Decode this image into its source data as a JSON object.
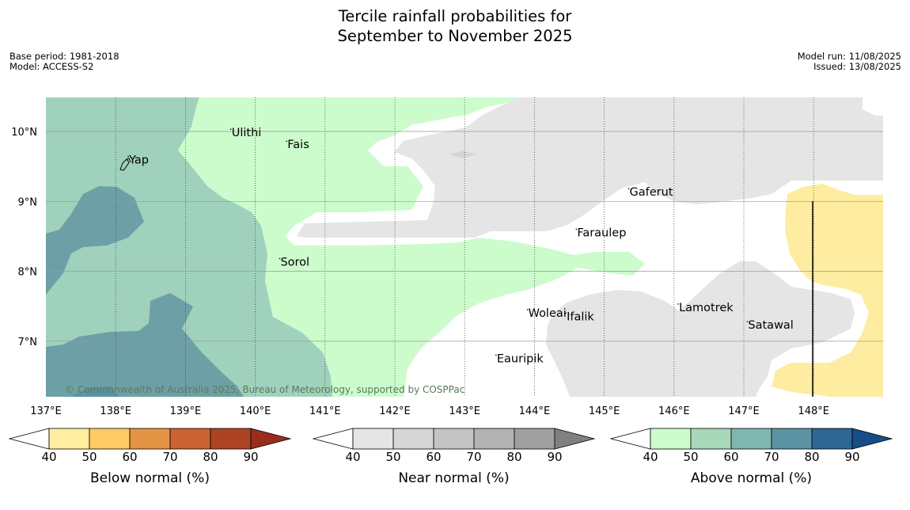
{
  "title": {
    "line1": "Tercile rainfall probabilities for",
    "line2": "September to November 2025"
  },
  "meta_left": {
    "base_period": "Base period: 1981-2018",
    "model": "Model: ACCESS-S2"
  },
  "meta_right": {
    "model_run": "Model run: 11/08/2025",
    "issued": "Issued: 13/08/2025"
  },
  "map": {
    "lon_ticks": [
      "137°E",
      "138°E",
      "139°E",
      "140°E",
      "141°E",
      "142°E",
      "143°E",
      "144°E",
      "145°E",
      "146°E",
      "147°E",
      "148°E"
    ],
    "lat_ticks": [
      "10°N",
      "9°N",
      "8°N",
      "7°N"
    ],
    "islands": [
      {
        "name": "Yap",
        "lon": 138.18,
        "lat": 9.54
      },
      {
        "name": "Ulithi",
        "lon": 139.65,
        "lat": 9.93
      },
      {
        "name": "Fais",
        "lon": 140.45,
        "lat": 9.76
      },
      {
        "name": "Gaferut",
        "lon": 145.35,
        "lat": 9.08
      },
      {
        "name": "Faraulep",
        "lon": 144.6,
        "lat": 8.5
      },
      {
        "name": "Sorol",
        "lon": 140.35,
        "lat": 8.08
      },
      {
        "name": "Woleai",
        "lon": 143.9,
        "lat": 7.35
      },
      {
        "name": "Ifalik",
        "lon": 144.45,
        "lat": 7.3
      },
      {
        "name": "Lamotrek",
        "lon": 146.06,
        "lat": 7.43
      },
      {
        "name": "Satawal",
        "lon": 147.05,
        "lat": 7.18
      },
      {
        "name": "Eauripik",
        "lon": 143.45,
        "lat": 6.7
      }
    ],
    "copyright": "© Commonwealth of Australia 2025, Bureau of Meteorology, supported by COSPPac",
    "colors": {
      "above_50_60": "#9fd1bc",
      "above_60_70": "#6da0a6",
      "above_40_50": "#ccfccc",
      "near_40_50": "#e5e5e5",
      "below_40_50": "#feeca0",
      "no_signal": "#ffffff"
    }
  },
  "colorbars": [
    {
      "label": "Below normal (%)",
      "ticks": [
        "40",
        "50",
        "60",
        "70",
        "80",
        "90"
      ],
      "colors": [
        "#ffffff",
        "#ffeda0",
        "#fecb65",
        "#e29444",
        "#cb6232",
        "#ac4424",
        "#982d1e"
      ]
    },
    {
      "label": "Near normal (%)",
      "ticks": [
        "40",
        "50",
        "60",
        "70",
        "80",
        "90"
      ],
      "colors": [
        "#ffffff",
        "#e5e5e5",
        "#d6d6d6",
        "#c4c4c4",
        "#b3b3b3",
        "#a0a0a0",
        "#808080"
      ]
    },
    {
      "label": "Above normal (%)",
      "ticks": [
        "40",
        "50",
        "60",
        "70",
        "80",
        "90"
      ],
      "colors": [
        "#ffffff",
        "#ccfccc",
        "#a6d8b9",
        "#80b6b0",
        "#5b93a2",
        "#2e6694",
        "#164e86"
      ]
    }
  ]
}
